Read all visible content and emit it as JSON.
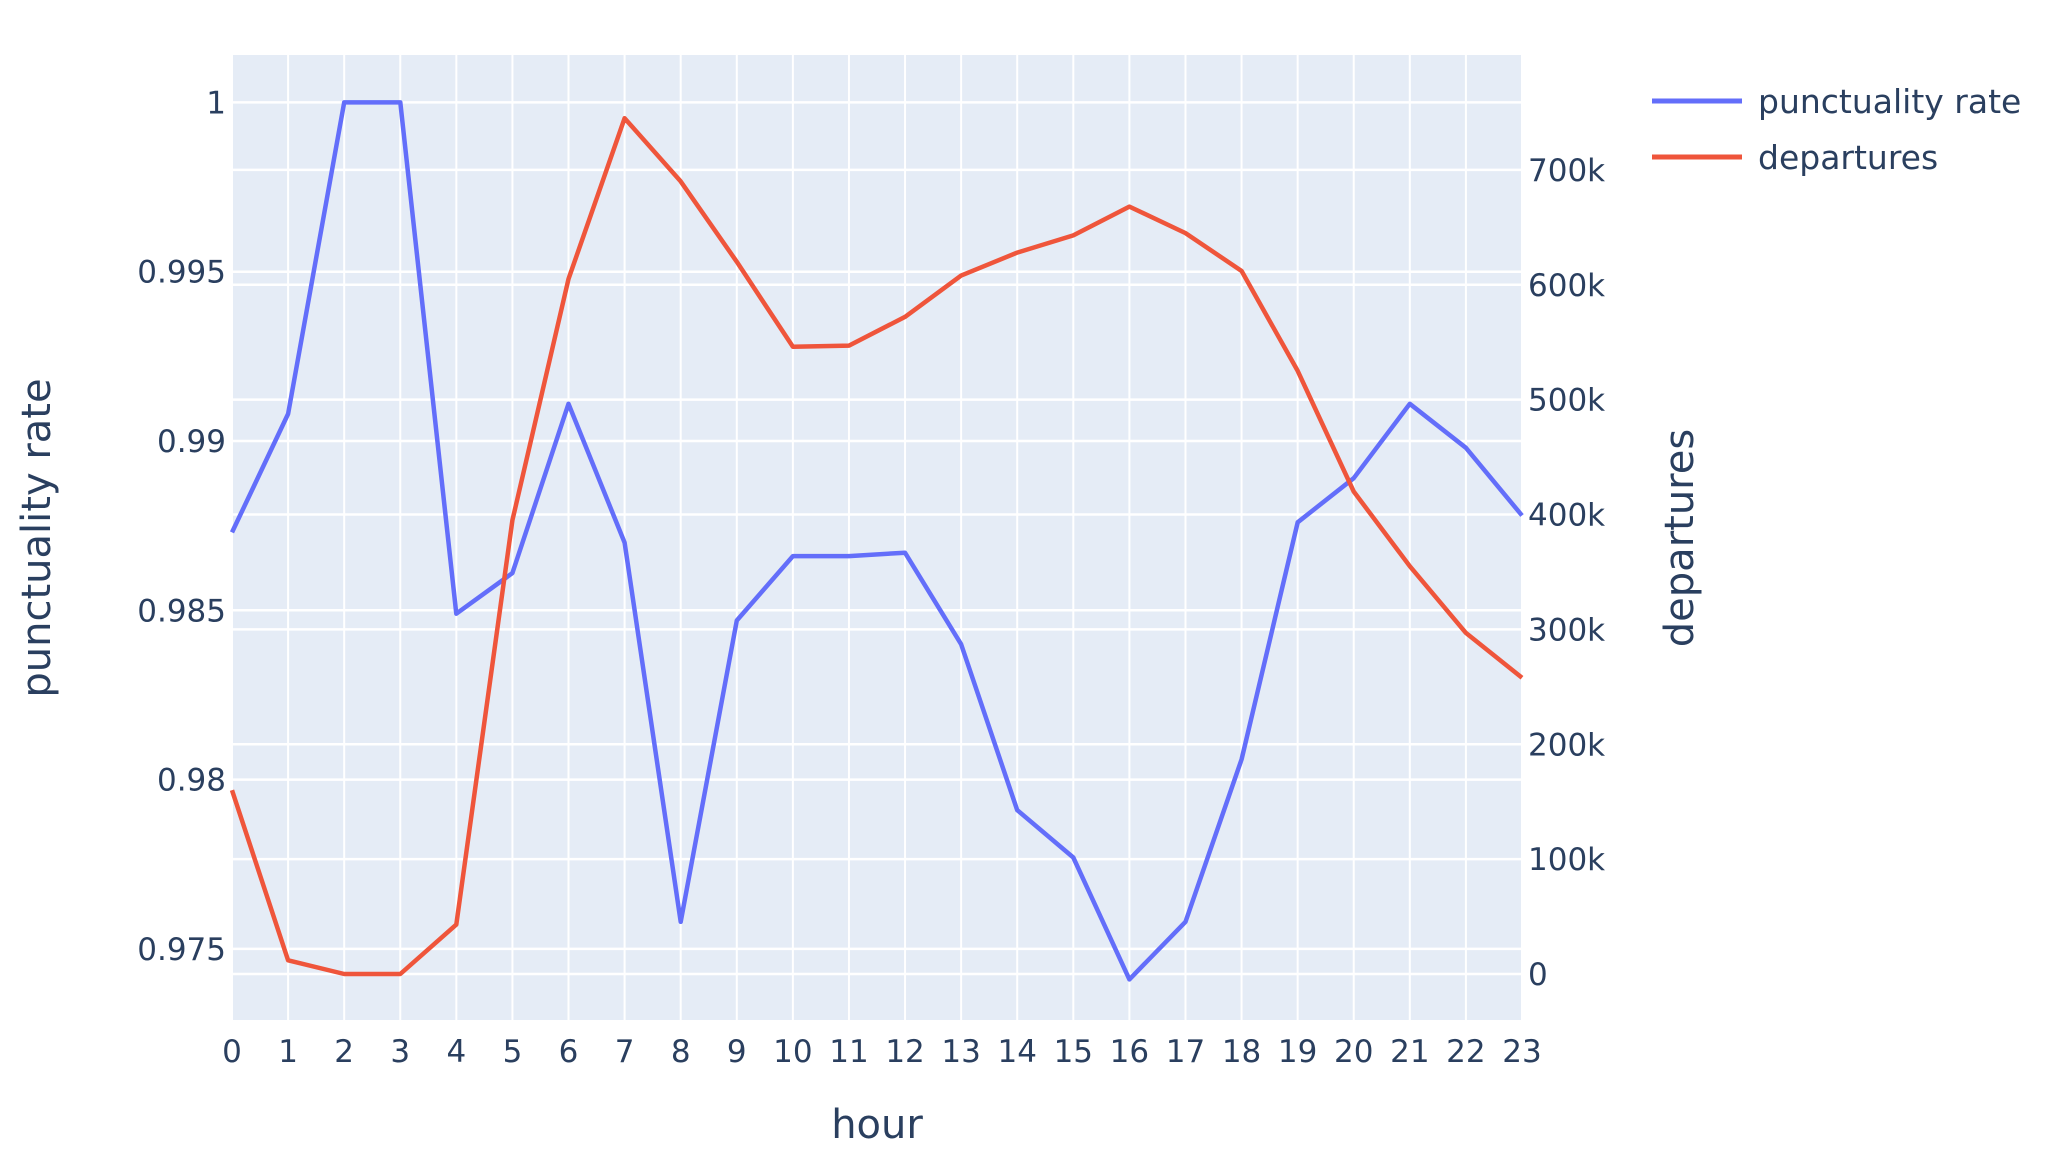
{
  "chart_data": {
    "type": "line",
    "xlabel": "hour",
    "ylabel_left": "punctuality rate",
    "ylabel_right": "departures",
    "x": [
      0,
      1,
      2,
      3,
      4,
      5,
      6,
      7,
      8,
      9,
      10,
      11,
      12,
      13,
      14,
      15,
      16,
      17,
      18,
      19,
      20,
      21,
      22,
      23
    ],
    "x_tick_labels": [
      "0",
      "1",
      "2",
      "3",
      "4",
      "5",
      "6",
      "7",
      "8",
      "9",
      "10",
      "11",
      "12",
      "13",
      "14",
      "15",
      "16",
      "17",
      "18",
      "19",
      "20",
      "21",
      "22",
      "23"
    ],
    "y_left_range": [
      0.9729,
      1.0014
    ],
    "y_left_ticks": [
      0.975,
      0.98,
      0.985,
      0.99,
      0.995,
      1.0
    ],
    "y_left_tick_labels": [
      "0.975",
      "0.98",
      "0.985",
      "0.99",
      "0.995",
      "1"
    ],
    "y_right_range": [
      -40000,
      800000
    ],
    "y_right_ticks": [
      0,
      100000,
      200000,
      300000,
      400000,
      500000,
      600000,
      700000
    ],
    "y_right_tick_labels": [
      "0",
      "100k",
      "200k",
      "300k",
      "400k",
      "500k",
      "600k",
      "700k"
    ],
    "grid": true,
    "legend_position": "top-right",
    "series": [
      {
        "name": "punctuality rate",
        "axis": "left",
        "color": "#636efa",
        "values": [
          0.9873,
          0.9908,
          1.0,
          1.0,
          0.9849,
          0.9861,
          0.9911,
          0.987,
          0.9758,
          0.9847,
          0.9866,
          0.9866,
          0.9867,
          0.984,
          0.9791,
          0.9777,
          0.9741,
          0.9758,
          0.9806,
          0.9876,
          0.9889,
          0.9911,
          0.9898,
          0.9878
        ]
      },
      {
        "name": "departures",
        "axis": "right",
        "color": "#ef553b",
        "values": [
          160000,
          12000,
          0,
          0,
          43000,
          395000,
          605000,
          745000,
          690000,
          620000,
          546000,
          547000,
          572000,
          608000,
          628000,
          643000,
          668000,
          645000,
          612000,
          525000,
          420000,
          355000,
          297000,
          258000
        ]
      }
    ]
  }
}
